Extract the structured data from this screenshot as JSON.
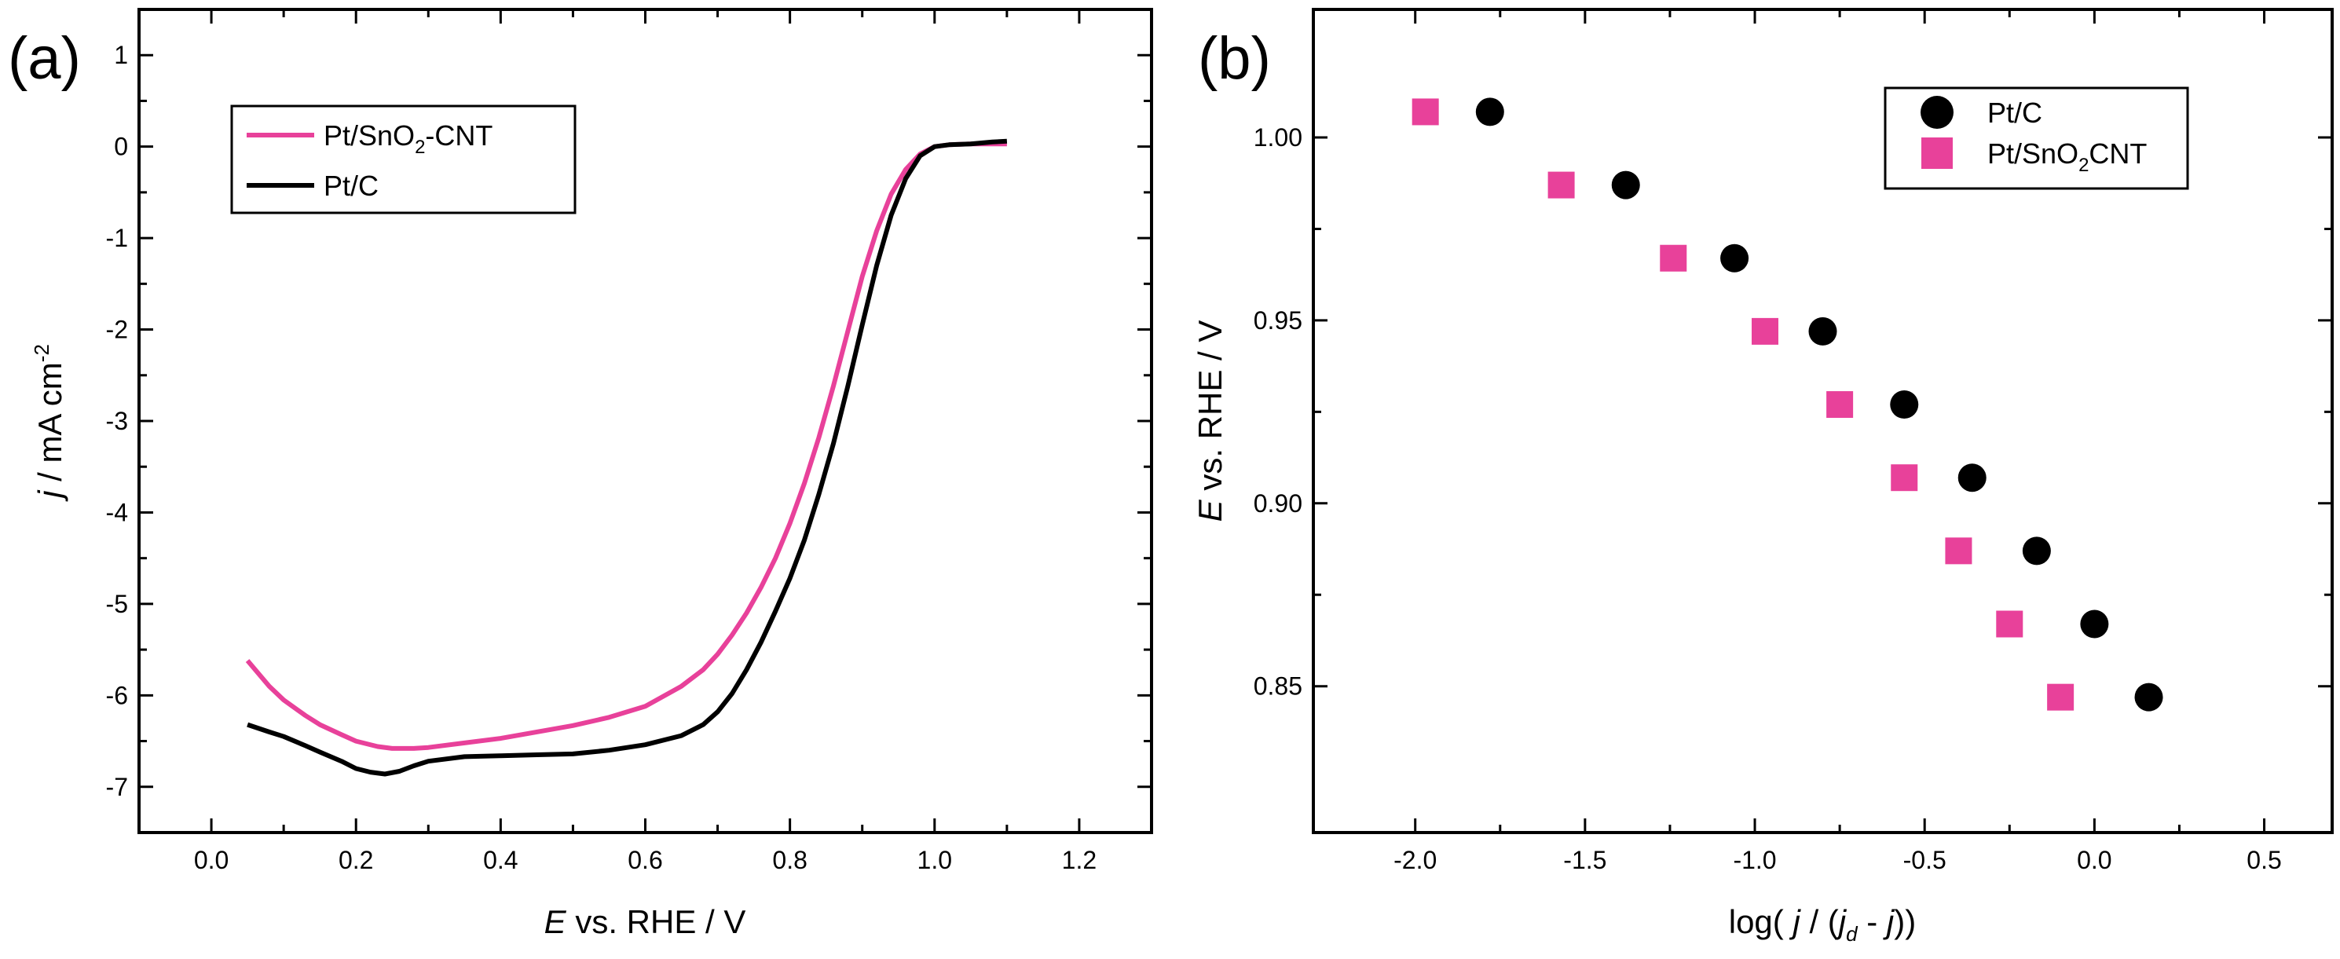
{
  "figure": {
    "panels": [
      "(a)",
      "(b)"
    ]
  },
  "chart_data": [
    {
      "id": "a",
      "type": "line",
      "panel_label": "(a)",
      "xlabel_italic": "E",
      "xlabel_rest": " vs. RHE / V",
      "ylabel_italic": "j",
      "ylabel_rest": " / mA cm",
      "ylabel_sup": "-2",
      "xlim": [
        -0.1,
        1.3
      ],
      "ylim": [
        -7.5,
        1.5
      ],
      "xticks": [
        0.0,
        0.2,
        0.4,
        0.6,
        0.8,
        1.0,
        1.2
      ],
      "xtick_labels": [
        "0.0",
        "0.2",
        "0.4",
        "0.6",
        "0.8",
        "1.0",
        "1.2"
      ],
      "yticks": [
        1,
        0,
        -1,
        -2,
        -3,
        -4,
        -5,
        -6,
        -7
      ],
      "ytick_labels": [
        "1",
        "0",
        "-1",
        "-2",
        "-3",
        "-4",
        "-5",
        "-6",
        "-7"
      ],
      "legend_position": "top-left",
      "series": [
        {
          "name": "Pt/SnO2-CNT",
          "legend_label": {
            "pre": "Pt/SnO",
            "sub": "2",
            "post": "-CNT"
          },
          "color": "#e8419a",
          "x": [
            0.05,
            0.08,
            0.1,
            0.13,
            0.15,
            0.18,
            0.2,
            0.23,
            0.25,
            0.28,
            0.3,
            0.35,
            0.4,
            0.45,
            0.5,
            0.55,
            0.6,
            0.65,
            0.68,
            0.7,
            0.72,
            0.74,
            0.76,
            0.78,
            0.8,
            0.82,
            0.84,
            0.86,
            0.88,
            0.9,
            0.92,
            0.94,
            0.96,
            0.98,
            1.0,
            1.02,
            1.05,
            1.08,
            1.1
          ],
          "y": [
            -5.62,
            -5.9,
            -6.05,
            -6.22,
            -6.32,
            -6.43,
            -6.5,
            -6.56,
            -6.58,
            -6.58,
            -6.57,
            -6.52,
            -6.47,
            -6.4,
            -6.33,
            -6.24,
            -6.12,
            -5.9,
            -5.72,
            -5.55,
            -5.34,
            -5.1,
            -4.82,
            -4.5,
            -4.12,
            -3.68,
            -3.18,
            -2.62,
            -2.02,
            -1.42,
            -0.92,
            -0.52,
            -0.25,
            -0.08,
            0.0,
            0.02,
            0.03,
            0.03,
            0.03
          ]
        },
        {
          "name": "Pt/C",
          "legend_label": {
            "pre": "Pt/C",
            "sub": "",
            "post": ""
          },
          "color": "#000000",
          "x": [
            0.05,
            0.08,
            0.1,
            0.13,
            0.15,
            0.18,
            0.2,
            0.22,
            0.24,
            0.26,
            0.28,
            0.3,
            0.35,
            0.4,
            0.45,
            0.5,
            0.55,
            0.6,
            0.65,
            0.68,
            0.7,
            0.72,
            0.74,
            0.76,
            0.78,
            0.8,
            0.82,
            0.84,
            0.86,
            0.88,
            0.9,
            0.92,
            0.94,
            0.96,
            0.98,
            1.0,
            1.02,
            1.05,
            1.08,
            1.1
          ],
          "y": [
            -6.32,
            -6.4,
            -6.45,
            -6.55,
            -6.62,
            -6.72,
            -6.8,
            -6.84,
            -6.86,
            -6.83,
            -6.77,
            -6.72,
            -6.67,
            -6.66,
            -6.65,
            -6.64,
            -6.6,
            -6.54,
            -6.44,
            -6.32,
            -6.18,
            -5.98,
            -5.72,
            -5.42,
            -5.08,
            -4.72,
            -4.3,
            -3.8,
            -3.25,
            -2.62,
            -1.95,
            -1.3,
            -0.75,
            -0.35,
            -0.1,
            0.0,
            0.02,
            0.03,
            0.05,
            0.06
          ]
        }
      ]
    },
    {
      "id": "b",
      "type": "scatter",
      "panel_label": "(b)",
      "xlabel_pre": "log(  ",
      "xlabel_j1": "j",
      "xlabel_mid": " / (",
      "xlabel_jd": "j",
      "xlabel_sub": "d",
      "xlabel_minus": " - ",
      "xlabel_j2": "j",
      "xlabel_post": "))",
      "ylabel_italic": "E",
      "ylabel_rest": " vs. RHE / V",
      "xlim": [
        -2.3,
        0.7
      ],
      "ylim": [
        0.81,
        1.035
      ],
      "xticks": [
        -2.0,
        -1.5,
        -1.0,
        -0.5,
        0.0,
        0.5
      ],
      "xtick_labels": [
        "-2.0",
        "-1.5",
        "-1.0",
        "-0.5",
        "0.0",
        "0.5"
      ],
      "yticks": [
        0.85,
        0.9,
        0.95,
        1.0
      ],
      "ytick_labels": [
        "0.85",
        "0.90",
        "0.95",
        "1.00"
      ],
      "legend_position": "top-right",
      "series": [
        {
          "name": "Pt/C",
          "legend_label": {
            "pre": "Pt/C",
            "sub": "",
            "post": ""
          },
          "marker": "circle",
          "color": "#000000",
          "x": [
            -1.78,
            -1.38,
            -1.06,
            -0.8,
            -0.56,
            -0.36,
            -0.17,
            0.0,
            0.16
          ],
          "y": [
            1.007,
            0.987,
            0.967,
            0.947,
            0.927,
            0.907,
            0.887,
            0.867,
            0.847
          ]
        },
        {
          "name": "Pt/SnO2CNT",
          "legend_label": {
            "pre": "Pt/SnO",
            "sub": "2",
            "post": "CNT"
          },
          "marker": "square",
          "color": "#e8419a",
          "x": [
            -1.97,
            -1.57,
            -1.24,
            -0.97,
            -0.75,
            -0.56,
            -0.4,
            -0.25,
            -0.1
          ],
          "y": [
            1.007,
            0.987,
            0.967,
            0.947,
            0.927,
            0.907,
            0.887,
            0.867,
            0.847
          ]
        }
      ]
    }
  ]
}
